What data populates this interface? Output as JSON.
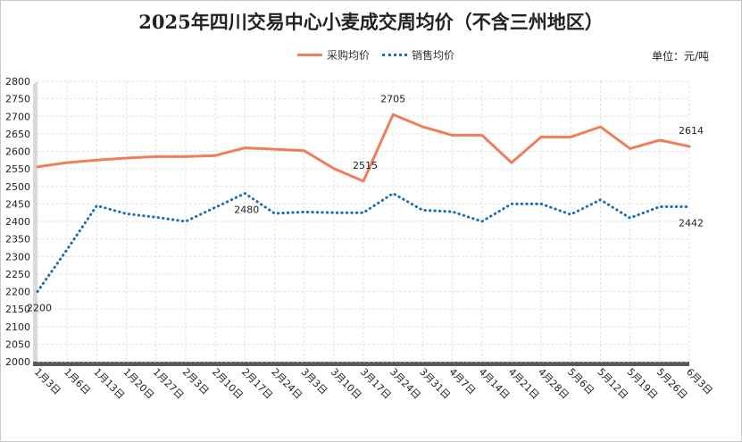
{
  "chart_data": {
    "type": "line",
    "title": "2025年四川交易中心小麦成交周均价（不含三州地区）",
    "unit_label": "单位：元/吨",
    "xlabel": "",
    "ylabel": "",
    "ylim": [
      2000,
      2800
    ],
    "y_ticks": [
      2000,
      2050,
      2100,
      2150,
      2200,
      2250,
      2300,
      2350,
      2400,
      2450,
      2500,
      2550,
      2600,
      2650,
      2700,
      2750,
      2800
    ],
    "grid": true,
    "legend_position": "top",
    "categories": [
      "1月3日",
      "1月6日",
      "1月13日",
      "1月20日",
      "1月27日",
      "2月3日",
      "2月10日",
      "2月17日",
      "2月24日",
      "3月3日",
      "3月10日",
      "3月17日",
      "3月24日",
      "3月31日",
      "4月7日",
      "4月14日",
      "4月21日",
      "4月28日",
      "5月6日",
      "5月12日",
      "5月19日",
      "5月26日",
      "6月3日"
    ],
    "series": [
      {
        "name": "采购均价",
        "color": "#ef7f5a",
        "style": "solid",
        "values": [
          2556,
          2568,
          2575,
          2581,
          2585,
          2585,
          2588,
          2610,
          2606,
          2602,
          2551,
          2515,
          2705,
          2670,
          2646,
          2646,
          2568,
          2641,
          2641,
          2670,
          2608,
          2632,
          2614
        ]
      },
      {
        "name": "销售均价",
        "color": "#1f6fb5",
        "style": "dotted",
        "values": [
          2200,
          2320,
          2445,
          2422,
          2412,
          2400,
          2440,
          2480,
          2423,
          2427,
          2425,
          2425,
          2480,
          2432,
          2428,
          2400,
          2450,
          2450,
          2420,
          2462,
          2410,
          2442,
          2442
        ]
      }
    ],
    "data_labels": [
      {
        "series": 0,
        "index": 11,
        "text": "2515"
      },
      {
        "series": 0,
        "index": 12,
        "text": "2705"
      },
      {
        "series": 0,
        "index": 22,
        "text": "2614"
      },
      {
        "series": 1,
        "index": 0,
        "text": "2200"
      },
      {
        "series": 1,
        "index": 7,
        "text": "2480"
      },
      {
        "series": 1,
        "index": 22,
        "text": "2442"
      }
    ]
  }
}
